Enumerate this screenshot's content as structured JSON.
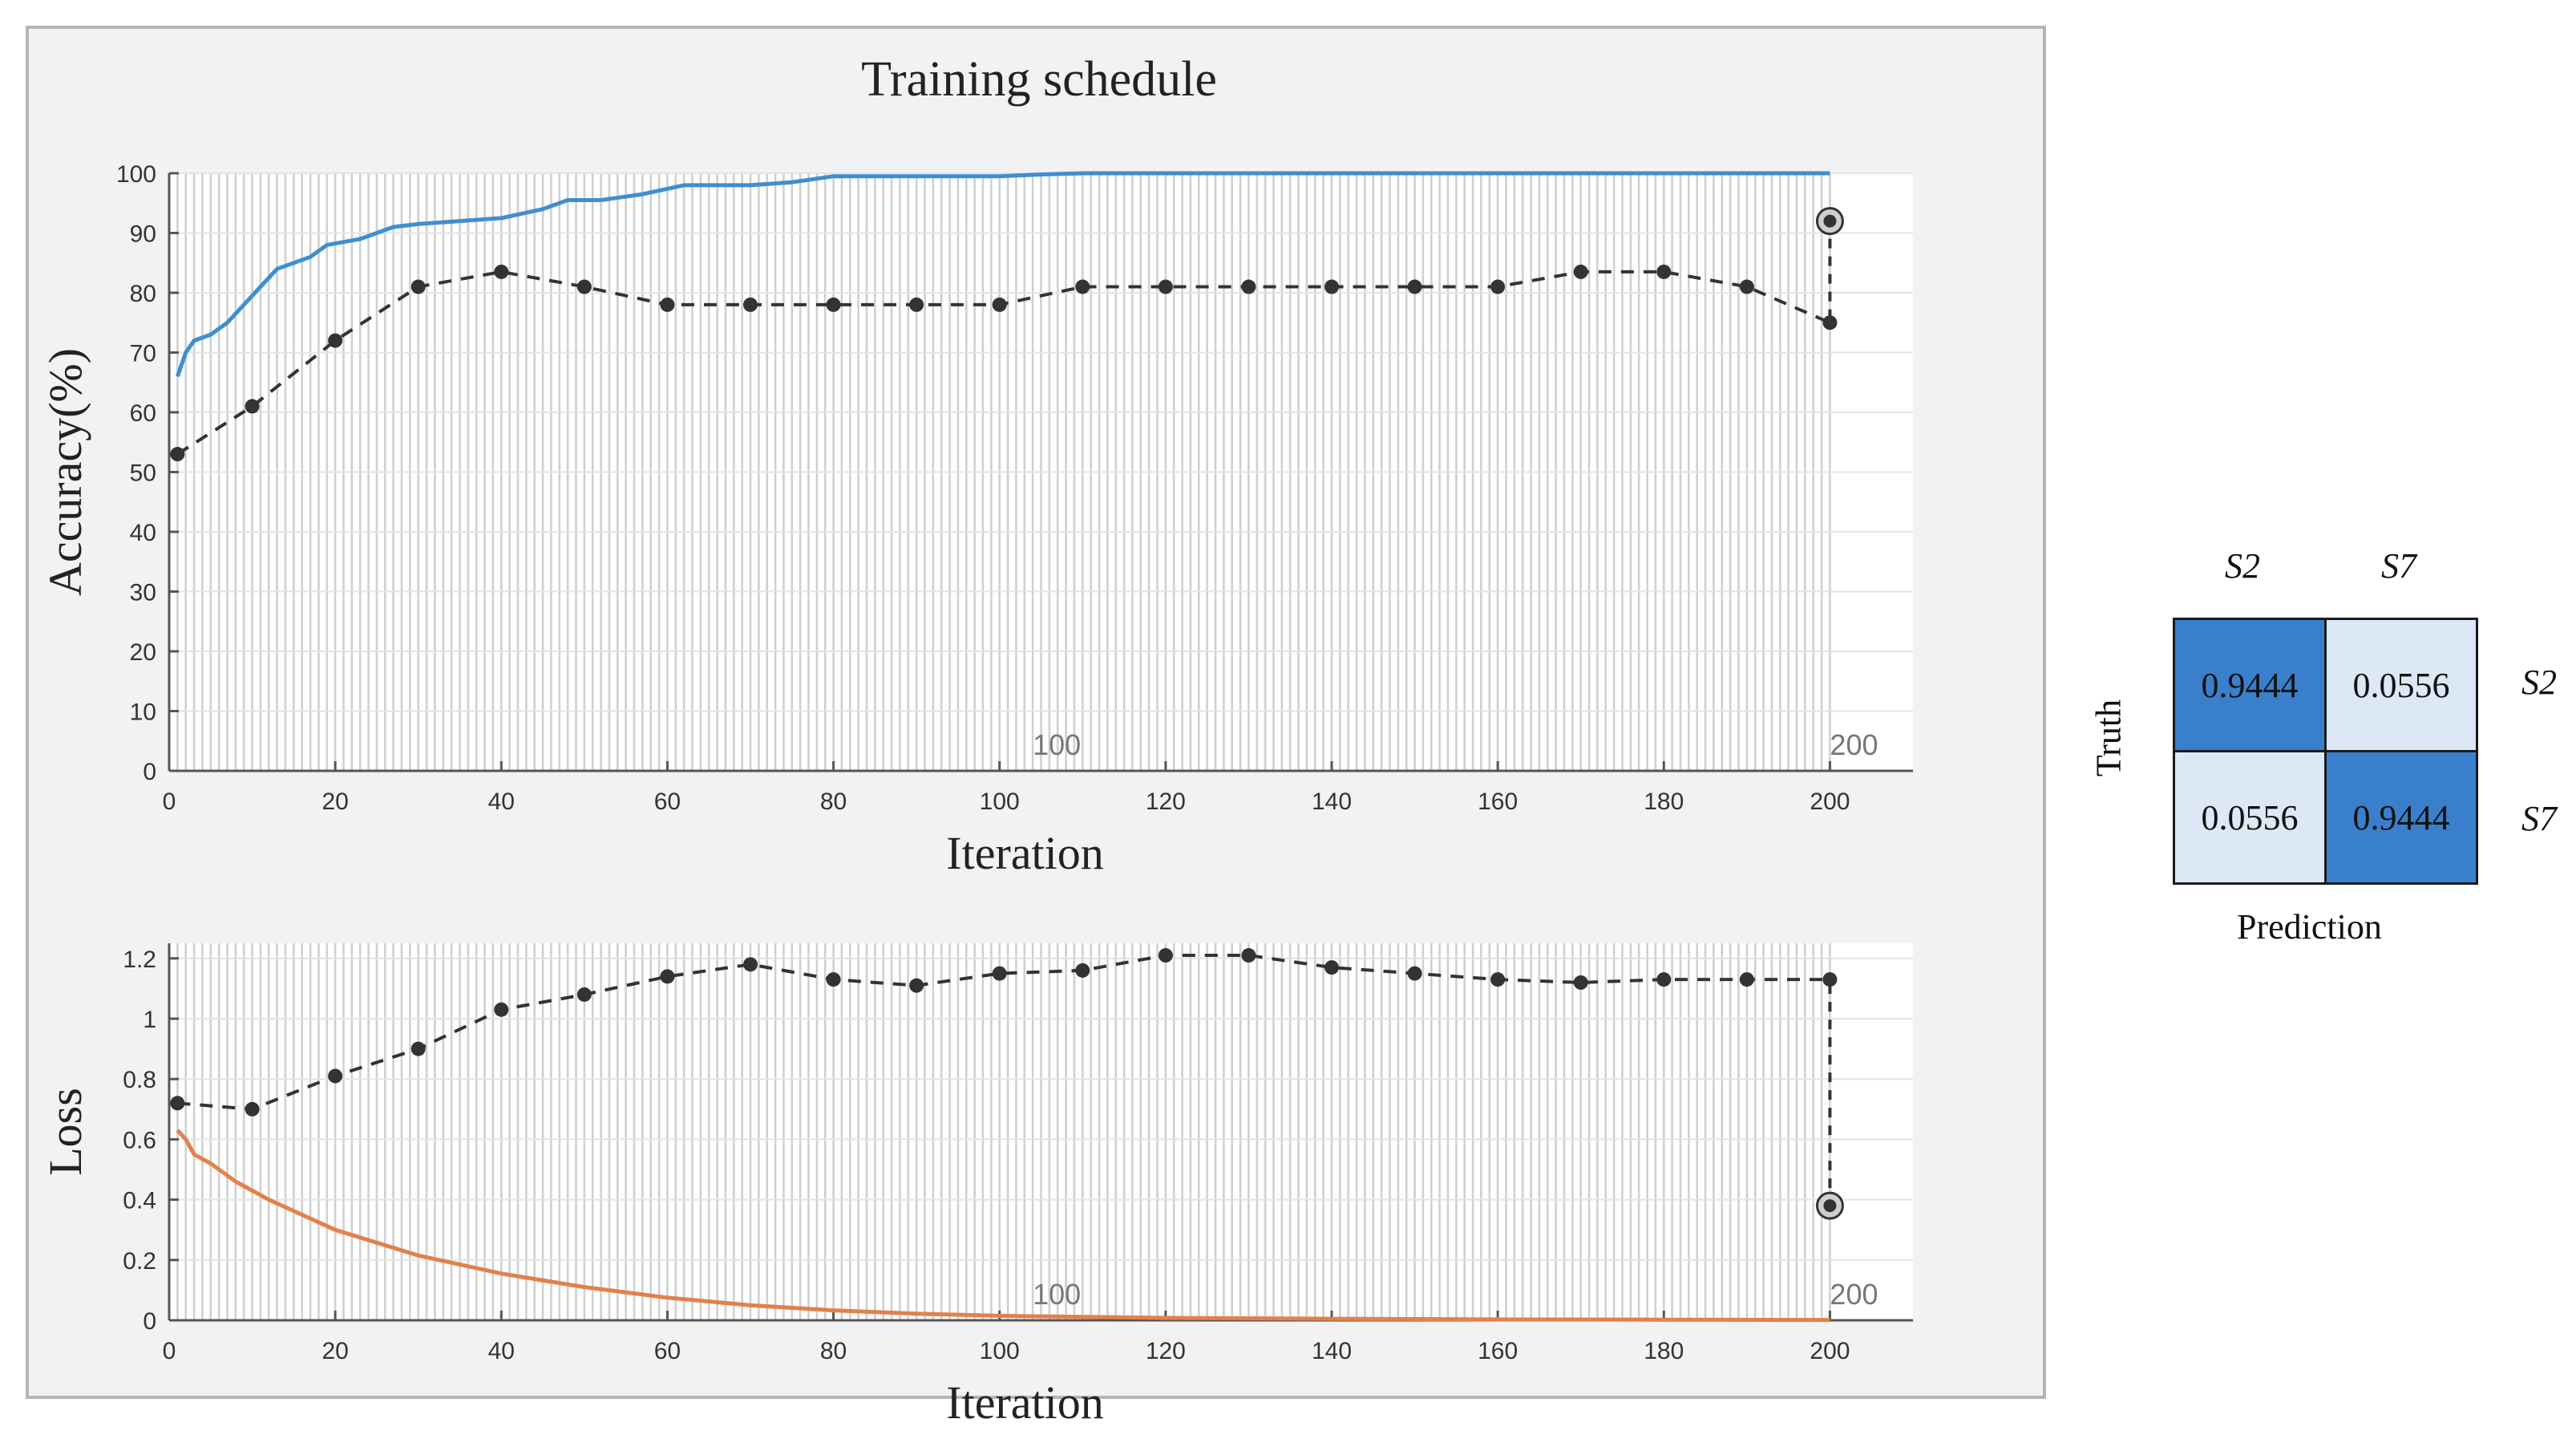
{
  "panel": {
    "title": "Training schedule"
  },
  "chart_data": [
    {
      "type": "line",
      "ylabel": "Accuracy(%)",
      "xlabel": "Iteration",
      "xlim": [
        0,
        210
      ],
      "ylim": [
        0,
        100
      ],
      "x_ticks": [
        0,
        20,
        40,
        60,
        80,
        100,
        120,
        140,
        160,
        180,
        200
      ],
      "y_ticks": [
        0,
        10,
        20,
        30,
        40,
        50,
        60,
        70,
        80,
        90,
        100
      ],
      "annotations": [
        "100",
        "200"
      ],
      "series": [
        {
          "style": "solid",
          "color": "#3f8fd0",
          "x": [
            1,
            2,
            3,
            5,
            7,
            9,
            11,
            13,
            15,
            17,
            19,
            21,
            23,
            25,
            27,
            30,
            35,
            40,
            45,
            48,
            52,
            57,
            62,
            70,
            75,
            80,
            90,
            100,
            105,
            110,
            130,
            150,
            170,
            190,
            200
          ],
          "y": [
            66,
            70,
            72,
            73,
            75,
            78,
            81,
            84,
            85,
            86,
            88,
            88.5,
            89,
            90,
            91,
            91.5,
            92,
            92.5,
            94,
            95.5,
            95.5,
            96.5,
            98,
            98,
            98.5,
            99.5,
            99.5,
            99.5,
            99.8,
            100,
            100,
            100,
            100,
            100,
            100
          ]
        },
        {
          "style": "dashed-markers",
          "color": "#333333",
          "x": [
            1,
            10,
            20,
            30,
            40,
            50,
            60,
            70,
            80,
            90,
            100,
            110,
            120,
            130,
            140,
            150,
            160,
            170,
            180,
            190,
            200
          ],
          "y": [
            53,
            61,
            72,
            81,
            83.5,
            81,
            78,
            78,
            78,
            78,
            78,
            81,
            81,
            81,
            81,
            81,
            81,
            83.5,
            83.5,
            81,
            75
          ]
        }
      ],
      "final_marker": {
        "x": 200,
        "y": 92
      }
    },
    {
      "type": "line",
      "ylabel": "Loss",
      "xlabel": "Iteration",
      "xlim": [
        0,
        210
      ],
      "ylim": [
        0,
        1.25
      ],
      "x_ticks": [
        0,
        20,
        40,
        60,
        80,
        100,
        120,
        140,
        160,
        180,
        200
      ],
      "y_ticks": [
        0,
        0.2,
        0.4,
        0.6,
        0.8,
        1,
        1.2
      ],
      "annotations": [
        "100",
        "200"
      ],
      "series": [
        {
          "style": "solid",
          "color": "#e2814a",
          "x": [
            1,
            2,
            3,
            5,
            8,
            12,
            20,
            30,
            40,
            50,
            60,
            70,
            80,
            90,
            100,
            120,
            140,
            160,
            180,
            200
          ],
          "y": [
            0.63,
            0.6,
            0.55,
            0.52,
            0.46,
            0.4,
            0.3,
            0.215,
            0.155,
            0.11,
            0.075,
            0.05,
            0.033,
            0.022,
            0.015,
            0.008,
            0.005,
            0.003,
            0.002,
            0.001
          ]
        },
        {
          "style": "dashed-markers",
          "color": "#333333",
          "x": [
            1,
            10,
            20,
            30,
            40,
            50,
            60,
            70,
            80,
            90,
            100,
            110,
            120,
            130,
            140,
            150,
            160,
            170,
            180,
            190,
            200
          ],
          "y": [
            0.72,
            0.7,
            0.81,
            0.9,
            1.03,
            1.08,
            1.14,
            1.18,
            1.13,
            1.11,
            1.15,
            1.16,
            1.21,
            1.21,
            1.17,
            1.15,
            1.13,
            1.12,
            1.13,
            1.13,
            1.13
          ]
        }
      ],
      "final_marker": {
        "x": 200,
        "y": 0.38
      }
    },
    {
      "type": "heatmap",
      "columns": [
        "S2",
        "S7"
      ],
      "rows": [
        "S2",
        "S7"
      ],
      "values": [
        [
          "0.9444",
          "0.0556"
        ],
        [
          "0.0556",
          "0.9444"
        ]
      ],
      "ylabel": "Truth",
      "xlabel": "Prediction",
      "colors": {
        "high": "#3a7fcc",
        "low": "#dce8f5"
      }
    }
  ]
}
